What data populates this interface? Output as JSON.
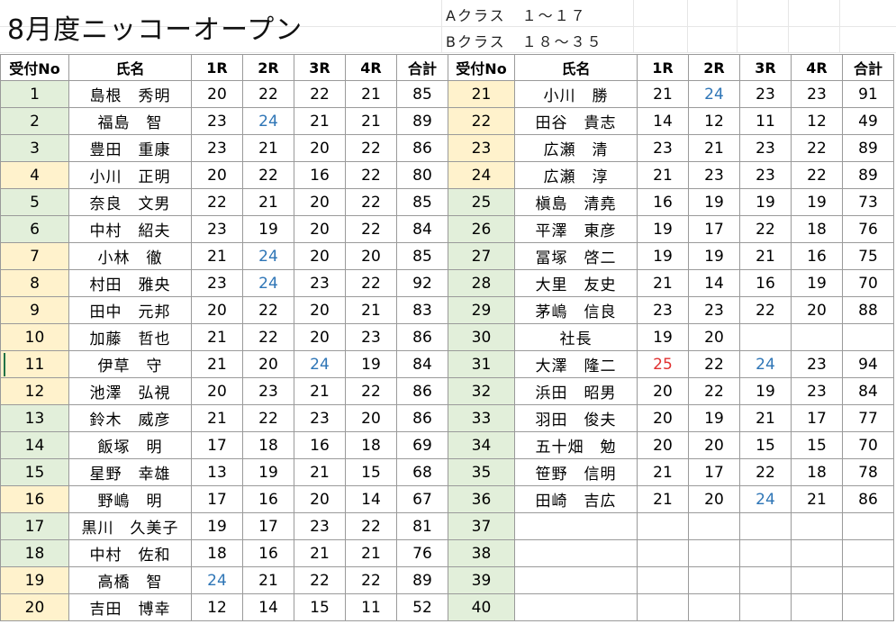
{
  "title": "8月度ニッコーオープン",
  "class_a": "Aクラス　１～１７",
  "class_b": "Bクラス　１８～３５",
  "headers": {
    "left": [
      "受付No",
      "氏名",
      "1R",
      "2R",
      "3R",
      "4R",
      "合計"
    ],
    "right": [
      "受付No",
      "氏名",
      "1R",
      "2R",
      "3R",
      "4R",
      "合計"
    ]
  },
  "rows": [
    {
      "l": {
        "no": "1",
        "name": "島根　秀明",
        "r1": "20",
        "r2": "22",
        "r3": "22",
        "r4": "21",
        "total": "85"
      },
      "r": {
        "no": "21",
        "name": "小川　勝",
        "r1": "21",
        "r2": "24",
        "r3": "23",
        "r4": "23",
        "total": "91"
      }
    },
    {
      "l": {
        "no": "2",
        "name": "福島　智",
        "r1": "23",
        "r2": "24",
        "r3": "21",
        "r4": "21",
        "total": "89"
      },
      "r": {
        "no": "22",
        "name": "田谷　貴志",
        "r1": "14",
        "r2": "12",
        "r3": "11",
        "r4": "12",
        "total": "49"
      }
    },
    {
      "l": {
        "no": "3",
        "name": "豊田　重康",
        "r1": "23",
        "r2": "21",
        "r3": "20",
        "r4": "22",
        "total": "86"
      },
      "r": {
        "no": "23",
        "name": "広瀬　清",
        "r1": "23",
        "r2": "21",
        "r3": "23",
        "r4": "22",
        "total": "89"
      }
    },
    {
      "l": {
        "no": "4",
        "name": "小川　正明",
        "r1": "20",
        "r2": "22",
        "r3": "16",
        "r4": "22",
        "total": "80"
      },
      "r": {
        "no": "24",
        "name": "広瀬　淳",
        "r1": "21",
        "r2": "23",
        "r3": "23",
        "r4": "22",
        "total": "89"
      }
    },
    {
      "l": {
        "no": "5",
        "name": "奈良　文男",
        "r1": "22",
        "r2": "21",
        "r3": "20",
        "r4": "22",
        "total": "85"
      },
      "r": {
        "no": "25",
        "name": "槇島　清堯",
        "r1": "16",
        "r2": "19",
        "r3": "19",
        "r4": "19",
        "total": "73"
      }
    },
    {
      "l": {
        "no": "6",
        "name": "中村　紹夫",
        "r1": "23",
        "r2": "19",
        "r3": "20",
        "r4": "22",
        "total": "84"
      },
      "r": {
        "no": "26",
        "name": "平澤　東彦",
        "r1": "19",
        "r2": "17",
        "r3": "22",
        "r4": "18",
        "total": "76"
      }
    },
    {
      "l": {
        "no": "7",
        "name": "小林　徹",
        "r1": "21",
        "r2": "24",
        "r3": "20",
        "r4": "20",
        "total": "85"
      },
      "r": {
        "no": "27",
        "name": "冨塚　啓二",
        "r1": "19",
        "r2": "19",
        "r3": "21",
        "r4": "16",
        "total": "75"
      }
    },
    {
      "l": {
        "no": "8",
        "name": "村田　雅央",
        "r1": "23",
        "r2": "24",
        "r3": "23",
        "r4": "22",
        "total": "92"
      },
      "r": {
        "no": "28",
        "name": "大里　友史",
        "r1": "21",
        "r2": "14",
        "r3": "16",
        "r4": "19",
        "total": "70"
      }
    },
    {
      "l": {
        "no": "9",
        "name": "田中　元邦",
        "r1": "20",
        "r2": "22",
        "r3": "20",
        "r4": "21",
        "total": "83"
      },
      "r": {
        "no": "29",
        "name": "茅嶋　信良",
        "r1": "23",
        "r2": "23",
        "r3": "22",
        "r4": "20",
        "total": "88"
      }
    },
    {
      "l": {
        "no": "10",
        "name": "加藤　哲也",
        "r1": "21",
        "r2": "22",
        "r3": "20",
        "r4": "23",
        "total": "86"
      },
      "r": {
        "no": "30",
        "name": "社長",
        "r1": "19",
        "r2": "20",
        "r3": "",
        "r4": "",
        "total": ""
      }
    },
    {
      "l": {
        "no": "11",
        "name": "伊草　守",
        "r1": "21",
        "r2": "20",
        "r3": "24",
        "r4": "19",
        "total": "84"
      },
      "r": {
        "no": "31",
        "name": "大澤　隆二",
        "r1": "25",
        "r2": "22",
        "r3": "24",
        "r4": "23",
        "total": "94"
      }
    },
    {
      "l": {
        "no": "12",
        "name": "池澤　弘視",
        "r1": "20",
        "r2": "23",
        "r3": "21",
        "r4": "22",
        "total": "86"
      },
      "r": {
        "no": "32",
        "name": "浜田　昭男",
        "r1": "20",
        "r2": "22",
        "r3": "19",
        "r4": "23",
        "total": "84"
      }
    },
    {
      "l": {
        "no": "13",
        "name": "鈴木　威彦",
        "r1": "21",
        "r2": "22",
        "r3": "23",
        "r4": "20",
        "total": "86"
      },
      "r": {
        "no": "33",
        "name": "羽田　俊夫",
        "r1": "20",
        "r2": "19",
        "r3": "21",
        "r4": "17",
        "total": "77"
      }
    },
    {
      "l": {
        "no": "14",
        "name": "飯塚　明",
        "r1": "17",
        "r2": "18",
        "r3": "16",
        "r4": "18",
        "total": "69"
      },
      "r": {
        "no": "34",
        "name": "五十畑　勉",
        "r1": "20",
        "r2": "20",
        "r3": "15",
        "r4": "15",
        "total": "70"
      }
    },
    {
      "l": {
        "no": "15",
        "name": "星野　幸雄",
        "r1": "13",
        "r2": "19",
        "r3": "21",
        "r4": "15",
        "total": "68"
      },
      "r": {
        "no": "35",
        "name": "笹野　信明",
        "r1": "21",
        "r2": "17",
        "r3": "22",
        "r4": "18",
        "total": "78"
      }
    },
    {
      "l": {
        "no": "16",
        "name": "野嶋　明",
        "r1": "17",
        "r2": "16",
        "r3": "20",
        "r4": "14",
        "total": "67"
      },
      "r": {
        "no": "36",
        "name": "田崎　吉広",
        "r1": "21",
        "r2": "20",
        "r3": "24",
        "r4": "21",
        "total": "86"
      }
    },
    {
      "l": {
        "no": "17",
        "name": "黒川　久美子",
        "r1": "19",
        "r2": "17",
        "r3": "23",
        "r4": "22",
        "total": "81"
      },
      "r": {
        "no": "37",
        "name": "",
        "r1": "",
        "r2": "",
        "r3": "",
        "r4": "",
        "total": ""
      }
    },
    {
      "l": {
        "no": "18",
        "name": "中村　佐和",
        "r1": "18",
        "r2": "16",
        "r3": "21",
        "r4": "21",
        "total": "76"
      },
      "r": {
        "no": "38",
        "name": "",
        "r1": "",
        "r2": "",
        "r3": "",
        "r4": "",
        "total": ""
      }
    },
    {
      "l": {
        "no": "19",
        "name": "高橋　智",
        "r1": "24",
        "r2": "21",
        "r3": "22",
        "r4": "22",
        "total": "89"
      },
      "r": {
        "no": "39",
        "name": "",
        "r1": "",
        "r2": "",
        "r3": "",
        "r4": "",
        "total": ""
      }
    },
    {
      "l": {
        "no": "20",
        "name": "吉田　博幸",
        "r1": "12",
        "r2": "14",
        "r3": "15",
        "r4": "11",
        "total": "52"
      },
      "r": {
        "no": "40",
        "name": "",
        "r1": "",
        "r2": "",
        "r3": "",
        "r4": "",
        "total": ""
      }
    }
  ],
  "colors": {
    "green_fill": "#e2efda",
    "yellow_fill": "#fff2cc",
    "blue_text": "#2e75b6",
    "red_text": "#e03030"
  }
}
